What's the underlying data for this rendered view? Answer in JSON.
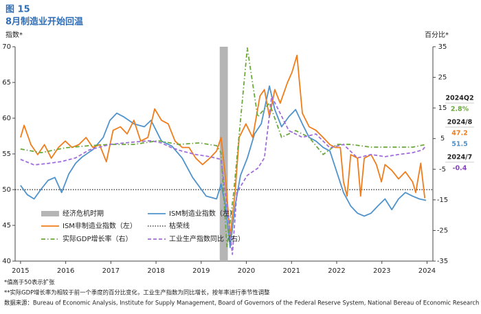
{
  "chart_data": {
    "type": "line",
    "title": "图 15",
    "subtitle": "8月制造业开始回温",
    "y_label": "指数*",
    "y2_label": "百分比*",
    "xlim": [
      2014.88,
      2024.13
    ],
    "xticks": [
      2015,
      2016,
      2017,
      2018,
      2019,
      2020,
      2021,
      2022,
      2023,
      2024
    ],
    "ylim": [
      40,
      70
    ],
    "yticks": [
      40,
      45,
      50,
      55,
      60,
      65,
      70
    ],
    "y2lim": [
      -35,
      35
    ],
    "y2ticks": [
      -35,
      -25,
      -15,
      -5,
      5,
      15,
      25,
      35
    ],
    "shaded_periods": [
      {
        "name": "经济危机时期",
        "start": 2019.41,
        "end": 2019.59,
        "color": "#b5b5b5"
      }
    ],
    "reference_lines": [
      {
        "name": "枯荣线",
        "value": 50,
        "color": "#222222"
      }
    ],
    "series": [
      {
        "name": "ISM制造业指数（左）",
        "color": "#4f93cc",
        "dash": "solid",
        "axis": "y",
        "x": [
          2015.0,
          2015.15,
          2015.3,
          2015.46,
          2015.61,
          2015.76,
          2015.91,
          2016.07,
          2016.22,
          2016.37,
          2016.6,
          2016.83,
          2016.98,
          2017.13,
          2017.28,
          2017.51,
          2017.74,
          2017.89,
          2018.12,
          2018.35,
          2018.58,
          2018.81,
          2018.96,
          2019.11,
          2019.34,
          2019.44,
          2019.54,
          2019.64,
          2019.75,
          2019.87,
          2020.02,
          2020.18,
          2020.33,
          2020.51,
          2020.63,
          2020.78,
          2020.94,
          2021.09,
          2021.24,
          2021.39,
          2021.54,
          2021.7,
          2021.85,
          2022.0,
          2022.15,
          2022.31,
          2022.46,
          2022.61,
          2022.76,
          2022.91,
          2023.07,
          2023.22,
          2023.37,
          2023.52,
          2023.68,
          2023.83,
          2023.98
        ],
        "values": [
          50.6,
          49.3,
          48.7,
          50.1,
          51.3,
          51.7,
          49.6,
          52.2,
          53.7,
          54.6,
          55.6,
          57.3,
          59.7,
          60.7,
          60.2,
          59.2,
          58.8,
          59.7,
          56.8,
          56.1,
          54.4,
          51.7,
          50.4,
          49.1,
          48.7,
          50.8,
          47.7,
          41.9,
          47.7,
          52.0,
          54.4,
          57.8,
          59.2,
          64.5,
          61.2,
          58.8,
          60.2,
          61.2,
          59.2,
          57.3,
          56.8,
          55.9,
          55.4,
          52.5,
          49.6,
          47.7,
          46.7,
          46.3,
          46.7,
          47.7,
          48.7,
          47.2,
          48.7,
          49.6,
          49.1,
          48.7,
          48.5
        ]
      },
      {
        "name": "ISM非制造业指数（左）",
        "color": "#f07d1a",
        "dash": "solid",
        "axis": "y",
        "x": [
          2015.0,
          2015.08,
          2015.23,
          2015.38,
          2015.53,
          2015.68,
          2015.84,
          2015.99,
          2016.14,
          2016.29,
          2016.45,
          2016.6,
          2016.75,
          2016.9,
          2017.05,
          2017.21,
          2017.36,
          2017.51,
          2017.66,
          2017.82,
          2017.97,
          2018.12,
          2018.27,
          2018.42,
          2018.58,
          2018.73,
          2018.88,
          2019.03,
          2019.19,
          2019.34,
          2019.44,
          2019.54,
          2019.64,
          2019.75,
          2019.84,
          2019.99,
          2020.14,
          2020.3,
          2020.4,
          2020.51,
          2020.63,
          2020.75,
          2020.91,
          2021.01,
          2021.12,
          2021.24,
          2021.39,
          2021.54,
          2021.7,
          2021.85,
          2021.97,
          2022.08,
          2022.15,
          2022.23,
          2022.31,
          2022.46,
          2022.53,
          2022.61,
          2022.76,
          2022.88,
          2022.99,
          2023.07,
          2023.22,
          2023.37,
          2023.52,
          2023.68,
          2023.75,
          2023.86,
          2023.95
        ],
        "values": [
          57.3,
          59.0,
          56.3,
          54.9,
          56.3,
          54.4,
          55.9,
          56.8,
          55.9,
          56.3,
          57.3,
          55.9,
          56.3,
          53.9,
          58.3,
          58.8,
          57.8,
          59.7,
          56.8,
          57.3,
          61.3,
          59.7,
          59.2,
          56.8,
          55.9,
          55.9,
          54.4,
          53.5,
          54.4,
          55.4,
          57.3,
          51.5,
          43.4,
          49.6,
          57.3,
          59.2,
          57.3,
          63.1,
          64.0,
          60.2,
          64.0,
          62.1,
          65.0,
          66.4,
          68.8,
          60.7,
          58.8,
          58.3,
          57.3,
          56.3,
          55.9,
          55.9,
          51.1,
          49.1,
          54.9,
          54.4,
          49.1,
          54.4,
          54.9,
          53.5,
          51.1,
          53.5,
          52.7,
          51.5,
          52.5,
          51.1,
          49.6,
          53.7,
          48.8
        ]
      },
      {
        "name": "实际GDP增长率（右）",
        "color": "#6aa83a",
        "dash": "dashdot",
        "axis": "y2",
        "x": [
          2015.0,
          2015.46,
          2015.99,
          2016.52,
          2016.98,
          2017.51,
          2018.04,
          2018.5,
          2018.96,
          2019.34,
          2019.44,
          2019.57,
          2019.72,
          2020.02,
          2020.25,
          2020.51,
          2020.78,
          2021.09,
          2021.39,
          2021.7,
          2022.0,
          2022.31,
          2022.76,
          2023.22,
          2023.68,
          2023.98
        ],
        "values": [
          1.6,
          0.4,
          2.0,
          2.7,
          3.1,
          3.1,
          4.3,
          3.1,
          3.6,
          2.7,
          0.4,
          -30.5,
          -12.6,
          34.6,
          12.1,
          16.6,
          5.4,
          7.6,
          5.4,
          -0.2,
          3.1,
          3.1,
          2.2,
          2.2,
          2.2,
          3.1
        ]
      },
      {
        "name": "工业生产指数同比（右）",
        "color": "#a06ddc",
        "dash": "dashed",
        "axis": "y2",
        "x": [
          2015.0,
          2015.3,
          2015.61,
          2015.91,
          2016.22,
          2016.52,
          2016.98,
          2017.44,
          2017.89,
          2018.12,
          2018.35,
          2018.58,
          2018.88,
          2019.19,
          2019.44,
          2019.57,
          2019.69,
          2019.79,
          2020.02,
          2020.25,
          2020.4,
          2020.56,
          2020.71,
          2020.94,
          2021.24,
          2021.54,
          2021.85,
          2022.15,
          2022.46,
          2022.76,
          2023.07,
          2023.37,
          2023.68,
          2023.9,
          2023.98
        ],
        "values": [
          -1.8,
          -3.6,
          -3.1,
          -2.5,
          -1.3,
          1.3,
          3.1,
          3.8,
          4.3,
          3.6,
          2.0,
          0.9,
          -0.2,
          -0.9,
          -1.8,
          -17.1,
          -32.8,
          -12.6,
          -7.0,
          -4.7,
          -1.3,
          18.8,
          14.4,
          7.6,
          5.4,
          6.5,
          2.0,
          3.1,
          -1.3,
          -0.2,
          -0.9,
          -0.2,
          0.4,
          1.3,
          2.7
        ]
      }
    ],
    "side_notes": [
      {
        "period": "2024Q2",
        "entries": [
          {
            "text": "2.8%",
            "color": "#6aa83a"
          }
        ]
      },
      {
        "period": "2024/8",
        "entries": [
          {
            "value": 47.2,
            "color": "#f07d1a"
          },
          {
            "value": 51.5,
            "color": "#4f93cc"
          }
        ]
      },
      {
        "period": "2024/7",
        "entries": [
          {
            "value": -0.4,
            "color": "#8a3fc4"
          }
        ]
      }
    ],
    "footnotes": [
      "*值高于50表示扩张",
      "**实际GDP增长率为相较于前一个季度的百分比变化，工业生产指数为同比增长，按年率进行季节性调整",
      "数据来源：Bureau of Economic Analysis, Institute for Supply Management, Board of Governors of the Federal Reserve System, National Bereau of Economic Research"
    ]
  }
}
